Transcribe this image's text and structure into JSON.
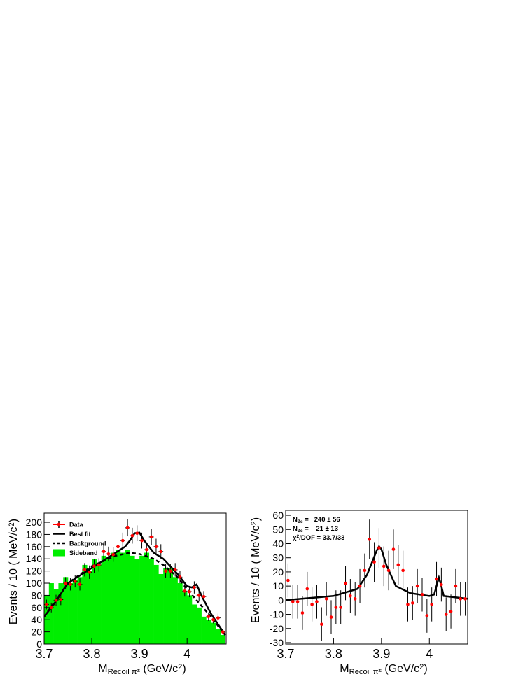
{
  "chart_data": [
    {
      "type": "histogram",
      "x_label": [
        [
          "M",
          "base"
        ],
        [
          "Recoil π",
          "sub"
        ],
        [
          "±",
          "subsup"
        ],
        [
          " (GeV/c",
          "base"
        ],
        [
          "2",
          "sup"
        ],
        [
          ")",
          "base"
        ]
      ],
      "y_label": [
        [
          "Events / 10 ( MeV/c",
          "base"
        ],
        [
          "2",
          "sup"
        ],
        [
          ")",
          "base"
        ]
      ],
      "xlim": [
        3.7,
        4.082
      ],
      "ylim": [
        0,
        215
      ],
      "xticks": [
        3.7,
        3.8,
        3.9,
        4
      ],
      "yticks": [
        0,
        20,
        40,
        60,
        80,
        100,
        120,
        140,
        160,
        180,
        200
      ],
      "legend": "top-left",
      "bins": [
        3.7,
        3.71,
        3.72,
        3.73,
        3.74,
        3.75,
        3.76,
        3.77,
        3.78,
        3.79,
        3.8,
        3.81,
        3.82,
        3.83,
        3.84,
        3.85,
        3.86,
        3.87,
        3.88,
        3.89,
        3.9,
        3.91,
        3.92,
        3.93,
        3.94,
        3.95,
        3.96,
        3.97,
        3.98,
        3.99,
        4.0,
        4.01,
        4.02,
        4.03,
        4.04,
        4.05,
        4.06,
        4.07,
        4.08
      ],
      "series": [
        {
          "name": "Sideband",
          "color": "#00ee00",
          "style": "filled",
          "values": [
            80,
            100,
            90,
            100,
            110,
            100,
            105,
            110,
            130,
            120,
            140,
            130,
            145,
            140,
            150,
            155,
            150,
            155,
            145,
            140,
            145,
            150,
            140,
            130,
            115,
            125,
            125,
            110,
            100,
            85,
            80,
            65,
            60,
            45,
            40,
            35,
            25,
            15
          ]
        },
        {
          "name": "Data",
          "color": "#ff0000",
          "style": "errorbar",
          "x": [
            3.705,
            3.715,
            3.725,
            3.735,
            3.745,
            3.755,
            3.765,
            3.775,
            3.785,
            3.795,
            3.805,
            3.815,
            3.825,
            3.835,
            3.845,
            3.855,
            3.865,
            3.875,
            3.885,
            3.895,
            3.905,
            3.915,
            3.925,
            3.935,
            3.945,
            3.955,
            3.965,
            3.975,
            3.985,
            3.995,
            4.005,
            4.015,
            4.025,
            4.035,
            4.045,
            4.055,
            4.065,
            4.075
          ],
          "values": [
            65,
            60,
            72,
            73,
            100,
            98,
            103,
            98,
            122,
            118,
            128,
            130,
            152,
            148,
            147,
            160,
            170,
            191,
            178,
            182,
            170,
            155,
            176,
            160,
            152,
            120,
            120,
            122,
            110,
            87,
            86,
            93,
            80,
            78,
            45,
            40,
            43,
            20
          ],
          "errors": [
            8,
            8,
            9,
            9,
            10,
            10,
            10,
            10,
            11,
            11,
            11,
            11,
            12,
            12,
            12,
            13,
            13,
            14,
            13,
            13,
            13,
            12,
            13,
            13,
            12,
            11,
            11,
            11,
            10,
            9,
            9,
            10,
            9,
            9,
            7,
            6,
            7,
            4
          ]
        },
        {
          "name": "Best fit",
          "color": "#000000",
          "style": "solid",
          "x": [
            3.7,
            3.72,
            3.75,
            3.8,
            3.85,
            3.87,
            3.88,
            3.89,
            3.9,
            3.91,
            3.93,
            3.95,
            3.98,
            4.0,
            4.01,
            4.02,
            4.03,
            4.05,
            4.08
          ],
          "values": [
            45,
            65,
            100,
            125,
            150,
            160,
            170,
            182,
            183,
            170,
            150,
            140,
            115,
            95,
            93,
            98,
            80,
            50,
            15
          ]
        },
        {
          "name": "Background",
          "color": "#000000",
          "style": "dashed",
          "x": [
            3.7,
            3.75,
            3.8,
            3.85,
            3.88,
            3.9,
            3.93,
            3.95,
            3.98,
            4.0,
            4.02,
            4.05,
            4.08
          ],
          "values": [
            45,
            100,
            128,
            145,
            150,
            148,
            140,
            130,
            110,
            90,
            72,
            45,
            15
          ]
        }
      ]
    },
    {
      "type": "scatter",
      "x_label": [
        [
          "M",
          "base"
        ],
        [
          "Recoil π",
          "sub"
        ],
        [
          "±",
          "subsup"
        ],
        [
          " (GeV/c",
          "base"
        ],
        [
          "2",
          "sup"
        ],
        [
          ")",
          "base"
        ]
      ],
      "y_label": [
        [
          "Events / 10 ( MeV/c",
          "base"
        ],
        [
          "2",
          "sup"
        ],
        [
          ")",
          "base"
        ]
      ],
      "xlim": [
        3.7,
        4.08
      ],
      "ylim": [
        -31,
        63.5
      ],
      "xticks": [
        3.7,
        3.8,
        3.9,
        4
      ],
      "yticks": [
        -30,
        -20,
        -10,
        0,
        10,
        20,
        30,
        40,
        50,
        60
      ],
      "annotations": [
        [
          [
            "N",
            "base"
          ],
          [
            "Zc",
            "sub"
          ],
          [
            " =   240 ± 56",
            "base"
          ]
        ],
        [
          [
            "N",
            "base"
          ],
          [
            "Zc",
            "sub"
          ],
          [
            " =    21 ± 13",
            "base"
          ]
        ],
        [
          [
            "χ",
            "base"
          ],
          [
            "2",
            "sup"
          ],
          [
            "/DOF = 33.7/33",
            "base"
          ]
        ]
      ],
      "series": [
        {
          "color": "#ff0000",
          "style": "errorbar",
          "x": [
            3.705,
            3.715,
            3.725,
            3.735,
            3.745,
            3.755,
            3.765,
            3.775,
            3.785,
            3.795,
            3.805,
            3.815,
            3.825,
            3.835,
            3.845,
            3.855,
            3.865,
            3.875,
            3.885,
            3.895,
            3.905,
            3.915,
            3.925,
            3.935,
            3.945,
            3.955,
            3.965,
            3.975,
            3.985,
            3.995,
            4.005,
            4.015,
            4.025,
            4.035,
            4.045,
            4.055,
            4.065,
            4.075
          ],
          "values": [
            14,
            -1,
            -1,
            -9,
            8,
            -3,
            -1,
            -17,
            1,
            -12,
            -5,
            -5,
            12,
            3,
            1,
            10,
            21,
            43,
            27,
            37,
            24,
            21,
            36,
            25,
            21,
            -3,
            -2,
            10,
            4,
            -11,
            -3,
            15,
            11,
            -10,
            -8,
            10,
            1,
            1
          ],
          "errors": [
            12,
            12,
            12,
            12,
            12,
            12,
            12,
            12,
            12,
            12,
            12,
            12,
            12,
            12,
            12,
            12,
            12,
            14,
            14,
            14,
            14,
            14,
            14,
            14,
            14,
            12,
            12,
            12,
            12,
            12,
            12,
            12,
            12,
            12,
            12,
            12,
            12,
            12
          ]
        },
        {
          "color": "#000000",
          "style": "solid",
          "x": [
            3.7,
            3.8,
            3.85,
            3.87,
            3.89,
            3.895,
            3.9,
            3.91,
            3.93,
            3.96,
            4.0,
            4.01,
            4.015,
            4.02,
            4.025,
            4.03,
            4.08
          ],
          "values": [
            0,
            3,
            8,
            18,
            35,
            38,
            36,
            25,
            10,
            5,
            3,
            4,
            10,
            16,
            10,
            3,
            1
          ]
        }
      ]
    }
  ]
}
